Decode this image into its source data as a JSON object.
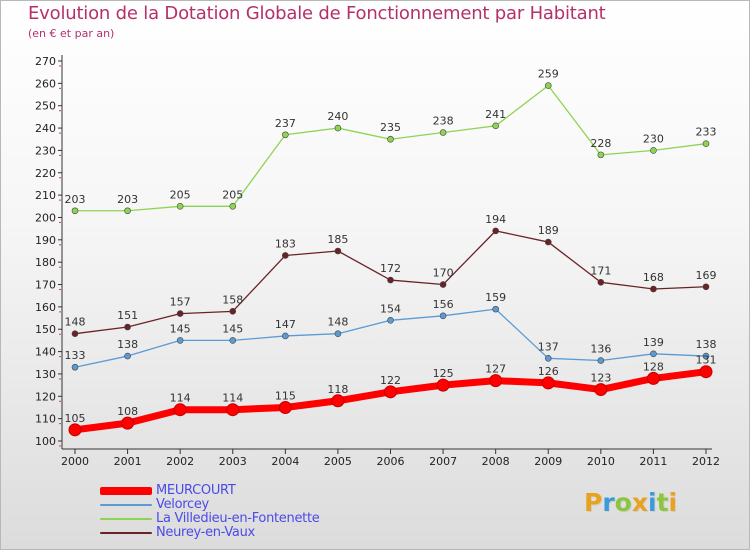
{
  "header": {
    "title": "Evolution de la Dotation Globale de Fonctionnement par Habitant",
    "subtitle": "(en € et par an)"
  },
  "logo": {
    "letters": [
      "P",
      "r",
      "o",
      "x",
      "i",
      "t",
      "i"
    ],
    "colors": [
      "#e8a21c",
      "#3b9bd8",
      "#8cc63f",
      "#e8a21c",
      "#3b9bd8",
      "#8cc63f",
      "#e8a21c"
    ]
  },
  "chart_data": {
    "type": "line",
    "title": "Evolution de la Dotation Globale de Fonctionnement par Habitant",
    "subtitle": "(en € et par an)",
    "xlabel": "",
    "ylabel": "",
    "x": [
      "2000",
      "2001",
      "2002",
      "2003",
      "2004",
      "2005",
      "2006",
      "2007",
      "2008",
      "2009",
      "2010",
      "2011",
      "2012"
    ],
    "ylim": [
      100,
      270
    ],
    "yticks": [
      100,
      110,
      120,
      130,
      140,
      150,
      160,
      170,
      180,
      190,
      200,
      210,
      220,
      230,
      240,
      250,
      260,
      270
    ],
    "grid": false,
    "legend_position": "bottom-left",
    "series": [
      {
        "name": "MEURCOURT",
        "color": "#ff0000",
        "emphasis": "thick",
        "values": [
          105,
          108,
          114,
          114,
          115,
          118,
          122,
          125,
          127,
          126,
          123,
          128,
          131
        ]
      },
      {
        "name": "Velorcey",
        "color": "#5b9bd5",
        "values": [
          133,
          138,
          145,
          145,
          147,
          148,
          154,
          156,
          159,
          137,
          136,
          139,
          138
        ]
      },
      {
        "name": "La Villedieu-en-Fontenette",
        "color": "#8ed454",
        "values": [
          203,
          203,
          205,
          205,
          237,
          240,
          235,
          238,
          241,
          259,
          228,
          230,
          233
        ]
      },
      {
        "name": "Neurey-en-Vaux",
        "color": "#6b2226",
        "values": [
          148,
          151,
          157,
          158,
          183,
          185,
          172,
          170,
          194,
          189,
          171,
          168,
          169
        ]
      }
    ]
  }
}
